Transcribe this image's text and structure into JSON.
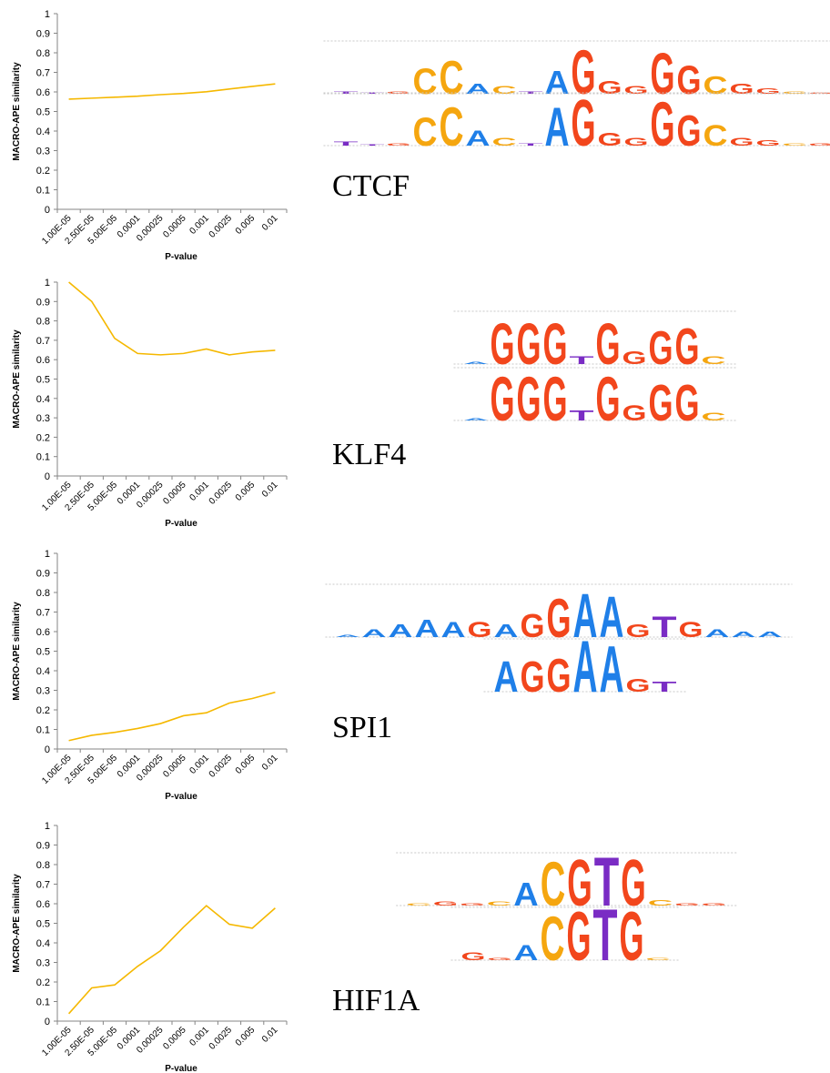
{
  "chart_data": [
    {
      "type": "line",
      "x_label": "P-value",
      "y_label": "MACRO-APE similarity",
      "motif": "CTCF",
      "color": "#f5b800",
      "categories": [
        "1.00E-05",
        "2.50E-05",
        "5.00E-05",
        "0.0001",
        "0.00025",
        "0.0005",
        "0.001",
        "0.0025",
        "0.005",
        "0.01"
      ],
      "values": [
        0.563,
        0.568,
        0.573,
        0.578,
        0.586,
        0.592,
        0.601,
        0.615,
        0.628,
        0.641
      ],
      "ylim": [
        0,
        1
      ],
      "yticks": [
        0,
        0.1,
        0.2,
        0.3,
        0.4,
        0.5,
        0.6,
        0.7,
        0.8,
        0.9,
        1
      ],
      "logo": [
        {
          "letters": [
            "T",
            "T",
            "G",
            "C",
            "C",
            "A",
            "C",
            "T",
            "A",
            "G",
            "G",
            "G",
            "G",
            "G",
            "C",
            "G",
            "G",
            "C",
            "G"
          ],
          "heights": [
            0.1,
            0.05,
            0.1,
            1.0,
            1.3,
            0.4,
            0.3,
            0.1,
            0.9,
            1.7,
            0.5,
            0.3,
            1.6,
            1.1,
            0.7,
            0.4,
            0.2,
            0.1,
            0.05
          ]
        },
        {
          "letters": [
            "T",
            "T",
            "G",
            "C",
            "C",
            "A",
            "C",
            "T",
            "A",
            "G",
            "G",
            "G",
            "G",
            "G",
            "C",
            "G",
            "G",
            "C",
            "G"
          ],
          "heights": [
            0.15,
            0.05,
            0.1,
            1.1,
            1.5,
            0.6,
            0.3,
            0.1,
            1.5,
            1.8,
            0.5,
            0.3,
            1.7,
            1.2,
            0.8,
            0.3,
            0.2,
            0.1,
            0.1
          ]
        }
      ]
    },
    {
      "type": "line",
      "x_label": "P-value",
      "y_label": "MACRO-APE similarity",
      "motif": "KLF4",
      "color": "#f5b800",
      "categories": [
        "1.00E-05",
        "2.50E-05",
        "5.00E-05",
        "0.0001",
        "0.00025",
        "0.0005",
        "0.001",
        "0.0025",
        "0.005",
        "0.01"
      ],
      "values": [
        1,
        0.9,
        0.71,
        0.632,
        0.625,
        0.632,
        0.655,
        0.625,
        0.64,
        0.648
      ],
      "ylim": [
        0,
        1
      ],
      "yticks": [
        0,
        0.1,
        0.2,
        0.3,
        0.4,
        0.5,
        0.6,
        0.7,
        0.8,
        0.9,
        1
      ],
      "logo": [
        {
          "letters": [
            "A",
            "G",
            "G",
            "G",
            "T",
            "G",
            "G",
            "G",
            "G",
            "C"
          ],
          "heights": [
            0.1,
            1.6,
            1.6,
            1.6,
            0.3,
            1.6,
            0.5,
            1.3,
            1.4,
            0.3
          ]
        },
        {
          "letters": [
            "A",
            "G",
            "G",
            "G",
            "T",
            "G",
            "G",
            "G",
            "G",
            "C"
          ],
          "heights": [
            0.1,
            1.7,
            1.7,
            1.7,
            0.4,
            1.7,
            0.6,
            1.4,
            1.4,
            0.3
          ]
        }
      ]
    },
    {
      "type": "line",
      "x_label": "P-value",
      "y_label": "MACRO-APE similarity",
      "motif": "SPI1",
      "color": "#f5b800",
      "categories": [
        "1.00E-05",
        "2.50E-05",
        "5.00E-05",
        "0.0001",
        "0.00025",
        "0.0005",
        "0.001",
        "0.0025",
        "0.005",
        "0.01"
      ],
      "values": [
        0.043,
        0.07,
        0.085,
        0.105,
        0.13,
        0.17,
        0.185,
        0.235,
        0.258,
        0.29
      ],
      "ylim": [
        0,
        1
      ],
      "yticks": [
        0,
        0.1,
        0.2,
        0.3,
        0.4,
        0.5,
        0.6,
        0.7,
        0.8,
        0.9,
        1
      ],
      "logo": [
        {
          "letters": [
            "A",
            "A",
            "A",
            "A",
            "A",
            "G",
            "A",
            "G",
            "G",
            "A",
            "A",
            "G",
            "T",
            "G",
            "A",
            "A",
            "A"
          ],
          "heights": [
            0.1,
            0.3,
            0.5,
            0.7,
            0.6,
            0.6,
            0.5,
            0.9,
            1.5,
            1.7,
            1.6,
            0.5,
            0.8,
            0.6,
            0.3,
            0.2,
            0.2
          ]
        },
        {
          "letters": [
            "A",
            "G",
            "G",
            "A",
            "A",
            "G",
            "T"
          ],
          "heights": [
            1.2,
            1.2,
            1.3,
            2.0,
            1.8,
            0.5,
            0.4
          ]
        }
      ]
    },
    {
      "type": "line",
      "x_label": "P-value",
      "y_label": "MACRO-APE similarity",
      "motif": "HIF1A",
      "color": "#f5b800",
      "categories": [
        "1.00E-05",
        "2.50E-05",
        "5.00E-05",
        "0.0001",
        "0.00025",
        "0.0005",
        "0.001",
        "0.0025",
        "0.005",
        "0.01"
      ],
      "values": [
        0.038,
        0.17,
        0.185,
        0.28,
        0.36,
        0.48,
        0.59,
        0.495,
        0.475,
        0.578
      ],
      "ylim": [
        0,
        1
      ],
      "yticks": [
        0,
        0.1,
        0.2,
        0.3,
        0.4,
        0.5,
        0.6,
        0.7,
        0.8,
        0.9,
        1
      ],
      "logo": [
        {
          "letters": [
            "C",
            "G",
            "G",
            "C",
            "A",
            "C",
            "G",
            "T",
            "G",
            "C",
            "G",
            "G"
          ],
          "heights": [
            0.1,
            0.15,
            0.1,
            0.15,
            0.9,
            1.7,
            1.8,
            1.9,
            1.8,
            0.2,
            0.1,
            0.1
          ]
        },
        {
          "letters": [
            "G",
            "G",
            "A",
            "C",
            "G",
            "T",
            "G",
            "C"
          ],
          "heights": [
            0.3,
            0.1,
            0.6,
            1.7,
            1.9,
            2.0,
            1.9,
            0.1
          ]
        }
      ]
    }
  ],
  "letter_colors": {
    "A": "#1f7fe8",
    "C": "#f5a60f",
    "G": "#f2461c",
    "T": "#7a2cc4"
  }
}
